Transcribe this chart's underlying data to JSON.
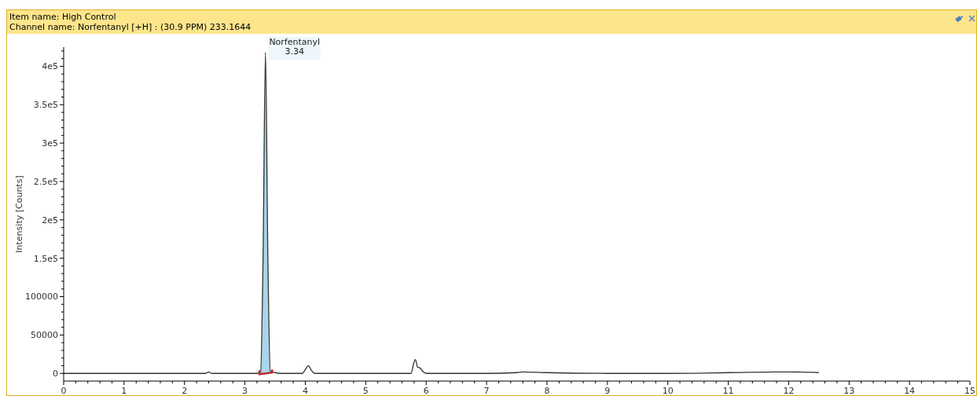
{
  "chart_data": {
    "type": "line",
    "title": "Item name: High Control",
    "subtitle": "Channel name: Norfentanyl [+H] : (30.9 PPM) 233.1644",
    "ylabel": "Intensity [Counts]",
    "xlim": [
      0,
      15
    ],
    "ylim": [
      -10000,
      425000
    ],
    "xticks": [
      0,
      {
        "value": 0.2,
        "label": null
      },
      {
        "value": 0.4,
        "label": null
      },
      {
        "value": 0.6,
        "label": null
      },
      {
        "value": 0.8,
        "label": null
      },
      1,
      {
        "value": 1.2,
        "label": null
      },
      {
        "value": 1.4,
        "label": null
      },
      {
        "value": 1.6,
        "label": null
      },
      {
        "value": 1.8,
        "label": null
      },
      2,
      {
        "value": 2.2,
        "label": null
      },
      {
        "value": 2.4,
        "label": null
      },
      {
        "value": 2.6,
        "label": null
      },
      {
        "value": 2.8,
        "label": null
      },
      3,
      {
        "value": 3.2,
        "label": null
      },
      {
        "value": 3.4,
        "label": null
      },
      {
        "value": 3.6,
        "label": null
      },
      {
        "value": 3.8,
        "label": null
      },
      4,
      {
        "value": 4.2,
        "label": null
      },
      {
        "value": 4.4,
        "label": null
      },
      {
        "value": 4.6,
        "label": null
      },
      {
        "value": 4.8,
        "label": null
      },
      5,
      {
        "value": 5.2,
        "label": null
      },
      {
        "value": 5.4,
        "label": null
      },
      {
        "value": 5.6,
        "label": null
      },
      {
        "value": 5.8,
        "label": null
      },
      6,
      {
        "value": 6.2,
        "label": null
      },
      {
        "value": 6.4,
        "label": null
      },
      {
        "value": 6.6,
        "label": null
      },
      {
        "value": 6.8,
        "label": null
      },
      7,
      {
        "value": 7.2,
        "label": null
      },
      {
        "value": 7.4,
        "label": null
      },
      {
        "value": 7.6,
        "label": null
      },
      {
        "value": 7.8,
        "label": null
      },
      8,
      {
        "value": 8.2,
        "label": null
      },
      {
        "value": 8.4,
        "label": null
      },
      {
        "value": 8.6,
        "label": null
      },
      {
        "value": 8.8,
        "label": null
      },
      9,
      {
        "value": 9.2,
        "label": null
      },
      {
        "value": 9.4,
        "label": null
      },
      {
        "value": 9.6,
        "label": null
      },
      {
        "value": 9.8,
        "label": null
      },
      10,
      {
        "value": 10.2,
        "label": null
      },
      {
        "value": 10.4,
        "label": null
      },
      {
        "value": 10.6,
        "label": null
      },
      {
        "value": 10.8,
        "label": null
      },
      11,
      {
        "value": 11.2,
        "label": null
      },
      {
        "value": 11.4,
        "label": null
      },
      {
        "value": 11.6,
        "label": null
      },
      {
        "value": 11.8,
        "label": null
      },
      12,
      {
        "value": 12.2,
        "label": null
      },
      {
        "value": 12.4,
        "label": null
      },
      {
        "value": 12.6,
        "label": null
      },
      {
        "value": 12.8,
        "label": null
      },
      13,
      {
        "value": 13.2,
        "label": null
      },
      {
        "value": 13.4,
        "label": null
      },
      {
        "value": 13.6,
        "label": null
      },
      {
        "value": 13.8,
        "label": null
      },
      14,
      {
        "value": 14.2,
        "label": null
      },
      {
        "value": 14.4,
        "label": null
      },
      {
        "value": 14.6,
        "label": null
      },
      {
        "value": 14.8,
        "label": null
      },
      15
    ],
    "yticks": [
      0,
      {
        "value": 10000,
        "label": null
      },
      {
        "value": 20000,
        "label": null
      },
      {
        "value": 30000,
        "label": null
      },
      {
        "value": 40000,
        "label": null
      },
      50000,
      {
        "value": 60000,
        "label": null
      },
      {
        "value": 70000,
        "label": null
      },
      {
        "value": 80000,
        "label": null
      },
      {
        "value": 90000,
        "label": null
      },
      100000,
      {
        "value": 110000,
        "label": null
      },
      {
        "value": 120000,
        "label": null
      },
      {
        "value": 130000,
        "label": null
      },
      {
        "value": 140000,
        "label": null
      },
      {
        "value": 150000,
        "label": "1.5e5"
      },
      {
        "value": 160000,
        "label": null
      },
      {
        "value": 170000,
        "label": null
      },
      {
        "value": 180000,
        "label": null
      },
      {
        "value": 190000,
        "label": null
      },
      {
        "value": 200000,
        "label": "2e5"
      },
      {
        "value": 210000,
        "label": null
      },
      {
        "value": 220000,
        "label": null
      },
      {
        "value": 230000,
        "label": null
      },
      {
        "value": 240000,
        "label": null
      },
      {
        "value": 250000,
        "label": "2.5e5"
      },
      {
        "value": 260000,
        "label": null
      },
      {
        "value": 270000,
        "label": null
      },
      {
        "value": 280000,
        "label": null
      },
      {
        "value": 290000,
        "label": null
      },
      {
        "value": 300000,
        "label": "3e5"
      },
      {
        "value": 310000,
        "label": null
      },
      {
        "value": 320000,
        "label": null
      },
      {
        "value": 330000,
        "label": null
      },
      {
        "value": 340000,
        "label": null
      },
      {
        "value": 350000,
        "label": "3.5e5"
      },
      {
        "value": 360000,
        "label": null
      },
      {
        "value": 370000,
        "label": null
      },
      {
        "value": 380000,
        "label": null
      },
      {
        "value": 390000,
        "label": null
      },
      {
        "value": 400000,
        "label": "4e5"
      },
      {
        "value": 410000,
        "label": null
      },
      {
        "value": 420000,
        "label": null
      }
    ],
    "series": [
      {
        "type": "area",
        "color": "#a9d5e8",
        "x": [
          3.24,
          3.26,
          3.3,
          3.34,
          3.38,
          3.42,
          3.45
        ],
        "values": [
          0,
          2000,
          150000,
          418000,
          150000,
          3000,
          0
        ]
      },
      {
        "color": "#333333",
        "x": [
          0,
          2.35,
          2.4,
          2.45,
          3.2,
          3.26,
          3.3,
          3.34,
          3.38,
          3.42,
          3.5,
          3.6,
          3.95,
          4.0,
          4.05,
          4.1,
          4.15,
          5.75,
          5.79,
          5.82,
          5.86,
          5.9,
          5.94,
          6.0,
          7.0,
          7.5,
          7.6,
          8.0,
          9.0,
          10.0,
          11.0,
          11.8,
          12.0,
          12.5
        ],
        "values": [
          0,
          0,
          2000,
          0,
          0,
          2000,
          150000,
          418000,
          150000,
          3000,
          1000,
          0,
          0,
          5000,
          10000,
          4000,
          0,
          0,
          12000,
          18000,
          8000,
          7000,
          3000,
          0,
          0,
          1000,
          2000,
          1000,
          0,
          0,
          1000,
          2000,
          2000,
          1000
        ]
      }
    ],
    "annotations": [
      {
        "text": "Norfentanyl",
        "x": 3.34,
        "y": 418000
      },
      {
        "text": "3.34",
        "x": 3.34,
        "y": 418000
      }
    ],
    "grid": false,
    "marker": "none",
    "line_style": "solid"
  }
}
